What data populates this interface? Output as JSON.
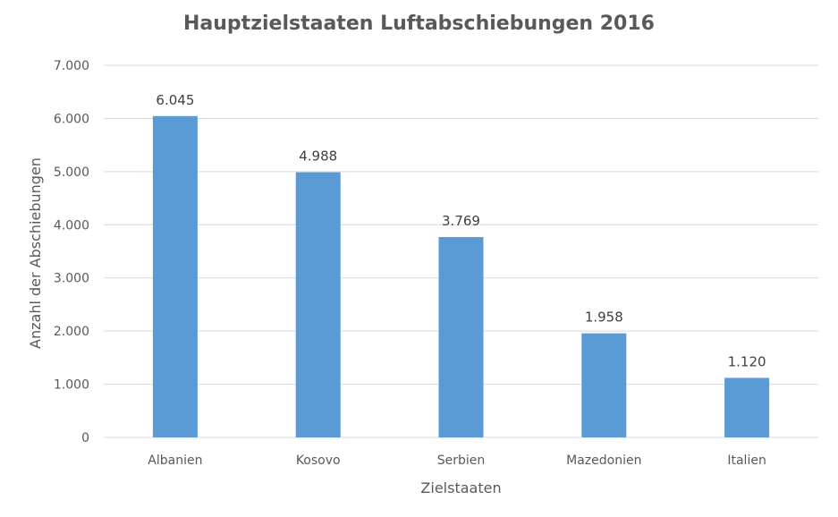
{
  "chart_data": {
    "type": "bar",
    "title": "Hauptzielstaaten Luftabschiebungen 2016",
    "xlabel": "Zielstaaten",
    "ylabel": "Anzahl der Abschiebungen",
    "categories": [
      "Albanien",
      "Kosovo",
      "Serbien",
      "Mazedonien",
      "Italien"
    ],
    "values": [
      6045,
      4988,
      3769,
      1958,
      1120
    ],
    "value_labels": [
      "6.045",
      "4.988",
      "3.769",
      "1.958",
      "1.120"
    ],
    "ylim": [
      0,
      7000
    ],
    "yticks": [
      0,
      1000,
      2000,
      3000,
      4000,
      5000,
      6000,
      7000
    ],
    "ytick_labels": [
      "0",
      "1.000",
      "2.000",
      "3.000",
      "4.000",
      "5.000",
      "6.000",
      "7.000"
    ],
    "grid": true,
    "legend": "none",
    "bar_color": "#5B9BD5",
    "grid_color": "#D9D9D9",
    "text_color": "#595959"
  }
}
